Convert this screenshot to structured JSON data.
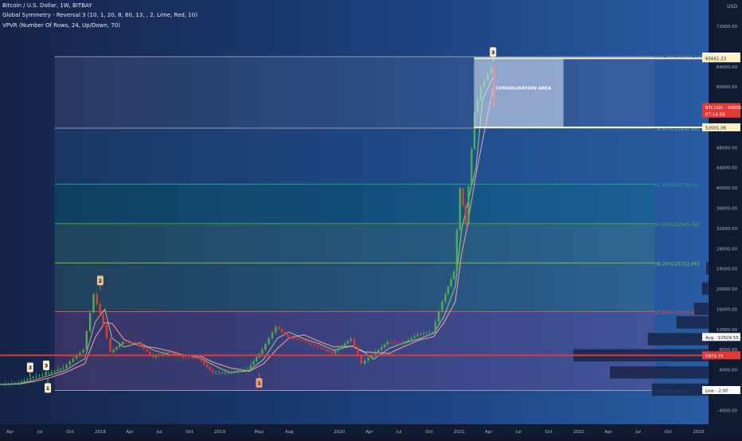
{
  "header": {
    "line1": "Bitcoin / U.S. Dollar, 1W, BITBAY",
    "line2": "Global Symmetry - Reversal 3 (10, 1, 20, 8, 60, 13, , 2, Lime, Red, 10)",
    "line3": "VPVR (Number Of Rows, 24, Up/Down, 70)"
  },
  "price_scale": {
    "unit_label": "USD",
    "ticks": [
      "72000.00",
      "64000.00",
      "60000.00",
      "56000.00",
      "52000.00",
      "48000.00",
      "44000.00",
      "40000.00",
      "36000.00",
      "32000.00",
      "28000.00",
      "24000.00",
      "20000.00",
      "16000.00",
      "12000.00",
      "8000.00",
      "4000.00",
      "0.00",
      "-4000.00"
    ]
  },
  "price_labels": [
    {
      "name": "high",
      "text": "High  -  65999.99",
      "value": 65999.99,
      "bg": "#ffffff",
      "fg": "#131722"
    },
    {
      "name": "fib-100",
      "text": "65661.23",
      "value": 65661.23,
      "bg": "#fff3c4",
      "fg": "#131722"
    },
    {
      "name": "current-price",
      "text": "BTCUSD  -  56000.00",
      "value": 56000,
      "bg": "#e53935",
      "fg": "#ffffff"
    },
    {
      "name": "countdown",
      "text": "07:14:50",
      "value": 54700,
      "bg": "#e53935",
      "fg": "#ffffff"
    },
    {
      "name": "fib-786",
      "text": "52001.06",
      "value": 52001.06,
      "bg": "#fff3c4",
      "fg": "#131722"
    },
    {
      "name": "avg",
      "text": "Avg  -  10509.55",
      "value": 10509.55,
      "bg": "#ffffff",
      "fg": "#131722"
    },
    {
      "name": "support",
      "text": "6876.75",
      "value": 6876.75,
      "bg": "#e53935",
      "fg": "#ffffff"
    },
    {
      "name": "low",
      "text": "Low  -  2.00",
      "value": 2,
      "bg": "#ffffff",
      "fg": "#131722"
    }
  ],
  "time_axis": {
    "labels": [
      "Apr",
      "Jul",
      "Oct",
      "2018",
      "Apr",
      "Jul",
      "Oct",
      "2019",
      "May",
      "Aug",
      "2020",
      "Apr",
      "Jul",
      "Oct",
      "2021",
      "Apr",
      "Jul",
      "Oct",
      "2022",
      "Apr",
      "Jul",
      "Oct",
      "2023"
    ]
  },
  "annotations": {
    "consolidation": "CONSOLIDATION AREA",
    "signal_3": "3",
    "signal_2": "2"
  },
  "colors": {
    "support_line": "#e53935",
    "fib_line": "#f5f0c8",
    "consolidation_fill": "#dce9f8",
    "up_candle": "#4caf50",
    "down_candle": "#e53935"
  },
  "chart_data": {
    "type": "line",
    "title": "Bitcoin / U.S. Dollar, 1W, BITBAY",
    "ylim": [
      -4000,
      76000
    ],
    "x_range": [
      "2017-03-01",
      "2023-02-01"
    ],
    "price_series": {
      "x": [
        "2017-03-01",
        "2017-05-01",
        "2017-06-15",
        "2017-08-01",
        "2017-09-15",
        "2017-11-15",
        "2017-12-17",
        "2018-01-15",
        "2018-02-06",
        "2018-03-15",
        "2018-05-01",
        "2018-06-15",
        "2018-08-01",
        "2018-09-15",
        "2018-11-01",
        "2018-12-15",
        "2019-02-01",
        "2019-04-01",
        "2019-05-15",
        "2019-06-26",
        "2019-08-01",
        "2019-09-15",
        "2019-11-01",
        "2019-12-15",
        "2020-02-10",
        "2020-03-13",
        "2020-04-15",
        "2020-06-01",
        "2020-07-15",
        "2020-09-01",
        "2020-10-15",
        "2020-11-15",
        "2020-12-20",
        "2021-01-08",
        "2021-01-25",
        "2021-02-21",
        "2021-03-13",
        "2021-04-14",
        "2021-04-20"
      ],
      "y": [
        1100,
        1400,
        2600,
        3300,
        4400,
        8000,
        19000,
        13000,
        7500,
        9500,
        9200,
        6500,
        7500,
        6500,
        6300,
        3400,
        3500,
        4200,
        8000,
        12500,
        10500,
        9800,
        8500,
        7300,
        10200,
        5200,
        7000,
        9500,
        9200,
        11000,
        11500,
        17500,
        23500,
        40000,
        33000,
        55000,
        60000,
        64000,
        56000
      ]
    },
    "signals": [
      {
        "label": "3",
        "date": "2017-06-01",
        "value": 2600,
        "side": "above",
        "color": "#f5f0c8"
      },
      {
        "label": "3",
        "date": "2017-07-20",
        "value": 3000,
        "side": "above",
        "color": "#f5f0c8"
      },
      {
        "label": "1",
        "date": "2017-07-25",
        "value": 2300,
        "side": "below",
        "color": "#f5f0c8"
      },
      {
        "label": "2",
        "date": "2018-01-01",
        "value": 19800,
        "side": "above",
        "color": "#f2c08a"
      },
      {
        "label": "1",
        "date": "2019-05-01",
        "value": 3300,
        "side": "below",
        "color": "#e8a07a"
      },
      {
        "label": "3",
        "date": "2021-04-14",
        "value": 65000,
        "side": "above",
        "color": "#f5f0c8"
      }
    ],
    "fibonacci": {
      "levels": [
        {
          "ratio": "100.00%",
          "price": 65965.14,
          "text": "100.00%(65965.14)",
          "color": "#9aa4c4"
        },
        {
          "ratio": "78.60%",
          "price": 51832.66,
          "text": "78.60%(51832.66)",
          "color": "#9aa4c4"
        },
        {
          "ratio": "61.80%",
          "price": 40738.01,
          "text": "61.80%(40738.01)",
          "color": "#26a69a"
        },
        {
          "ratio": "50.00%",
          "price": 32945.34,
          "text": "50.00%(32945.34)",
          "color": "#4caf50"
        },
        {
          "ratio": "38.20%",
          "price": 25152.66,
          "text": "38.20%(25152.66)",
          "color": "#8bc34a"
        },
        {
          "ratio": "23.60%",
          "price": 15510.48,
          "text": "23.60%(15510.48)",
          "color": "#ef5350"
        },
        {
          "ratio": "0.00%",
          "price": -74.46,
          "text": "0.00%(-74.46)",
          "color": "#9aa4c4"
        }
      ]
    },
    "horizontal_lines": [
      {
        "price": 6876.75,
        "color": "#e53935"
      },
      {
        "price": 65661.23,
        "color": "#f5f0c8"
      },
      {
        "price": 52001.06,
        "color": "#f5f0c8"
      }
    ],
    "consolidation_box": {
      "x_start": "2021-02-15",
      "x_end": "2021-11-15",
      "y_low": 52001.06,
      "y_high": 65661.23,
      "label": "CONSOLIDATION AREA"
    },
    "volume_profile": {
      "rows": [
        {
          "price": 24000,
          "value": 0.02
        },
        {
          "price": 20000,
          "value": 0.05
        },
        {
          "price": 16000,
          "value": 0.11
        },
        {
          "price": 13300,
          "value": 0.24
        },
        {
          "price": 10000,
          "value": 0.45
        },
        {
          "price": 6800,
          "value": 1.0
        },
        {
          "price": 3400,
          "value": 0.73
        },
        {
          "price": 0,
          "value": 0.42
        }
      ]
    }
  }
}
